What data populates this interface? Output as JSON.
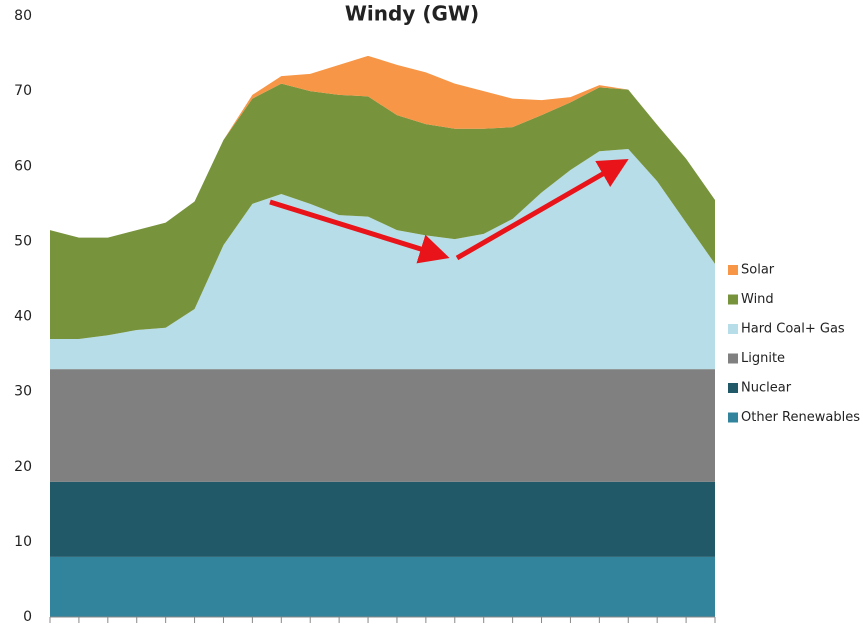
{
  "chart_data": {
    "type": "stacked-area",
    "title": "Windy (GW)",
    "categories": [
      null,
      null,
      null,
      null,
      null,
      null,
      null,
      null,
      null,
      null,
      null,
      null,
      null,
      null,
      null,
      null,
      null,
      null,
      null,
      null,
      null,
      null,
      null,
      null
    ],
    "series": [
      {
        "name": "Other Renewables",
        "color": "#31849b",
        "values": [
          8,
          8,
          8,
          8,
          8,
          8,
          8,
          8,
          8,
          8,
          8,
          8,
          8,
          8,
          8,
          8,
          8,
          8,
          8,
          8,
          8,
          8,
          8,
          8
        ]
      },
      {
        "name": "Nuclear",
        "color": "#215968",
        "values": [
          10,
          10,
          10,
          10,
          10,
          10,
          10,
          10,
          10,
          10,
          10,
          10,
          10,
          10,
          10,
          10,
          10,
          10,
          10,
          10,
          10,
          10,
          10,
          10
        ]
      },
      {
        "name": "Lignite",
        "color": "#808080",
        "values": [
          15,
          15,
          15,
          15,
          15,
          15,
          15,
          15,
          15,
          15,
          15,
          15,
          15,
          15,
          15,
          15,
          15,
          15,
          15,
          15,
          15,
          15,
          15,
          15
        ]
      },
      {
        "name": "Hard Coal+ Gas",
        "color": "#b7dde8",
        "values": [
          4,
          4,
          4.5,
          5.2,
          5.5,
          8,
          16.5,
          22,
          23.3,
          22,
          20.5,
          20.3,
          18.5,
          17.8,
          17.3,
          18,
          20,
          23.5,
          26.5,
          29,
          29.3,
          25,
          19.5,
          14
        ]
      },
      {
        "name": "Wind",
        "color": "#77933c",
        "values": [
          14.5,
          13.5,
          13,
          13.3,
          14,
          14.3,
          14,
          14,
          14.7,
          15,
          16,
          16,
          15.3,
          14.8,
          14.7,
          14,
          12.2,
          10.3,
          9,
          8.5,
          7.9,
          7.5,
          8.5,
          8.5
        ]
      },
      {
        "name": "Solar",
        "color": "#f79646",
        "values": [
          0,
          0,
          0,
          0,
          0,
          0,
          0,
          0.5,
          1,
          2.3,
          4,
          5.4,
          6.7,
          6.9,
          6,
          5,
          3.8,
          2,
          0.7,
          0.3,
          0,
          0,
          0,
          0
        ]
      }
    ],
    "ylim": [
      0,
      80
    ],
    "yticks": [
      0,
      10,
      20,
      30,
      40,
      50,
      60,
      70,
      80
    ],
    "grid": false,
    "legend": "right"
  }
}
